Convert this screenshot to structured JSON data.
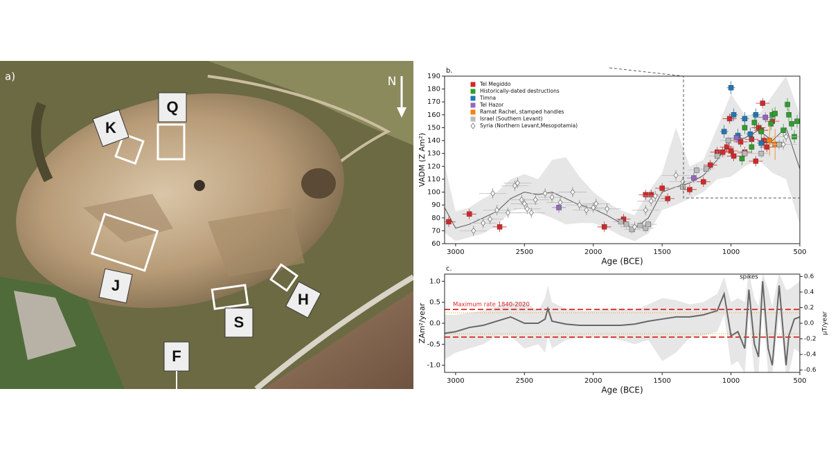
{
  "photo": {
    "panel_label": "a)",
    "north": "N",
    "areas": [
      "K",
      "Q",
      "J",
      "S",
      "H",
      "F"
    ]
  },
  "chart_data": [
    {
      "type": "scatter",
      "panel_label": "b.",
      "x_label": "Age (BCE)",
      "y_label": "VADM (Z Am²)",
      "xlim": [
        3080,
        500
      ],
      "ylim": [
        60,
        190
      ],
      "xticks": [
        3000,
        2500,
        2000,
        1500,
        1000,
        500
      ],
      "yticks": [
        60,
        70,
        80,
        90,
        100,
        110,
        120,
        130,
        140,
        150,
        160,
        170,
        180,
        190
      ],
      "legend": "upper left",
      "model": {
        "color": "#555555",
        "band_color": "#e6e6e6",
        "x": [
          3100,
          3000,
          2900,
          2800,
          2700,
          2600,
          2500,
          2400,
          2300,
          2200,
          2100,
          2000,
          1900,
          1800,
          1700,
          1600,
          1500,
          1400,
          1300,
          1200,
          1100,
          1000,
          900,
          800,
          700,
          600,
          500
        ],
        "values": [
          92,
          72,
          75,
          80,
          85,
          95,
          100,
          98,
          100,
          95,
          90,
          87,
          82,
          76,
          72,
          80,
          100,
          104,
          107,
          113,
          125,
          140,
          142,
          148,
          140,
          150,
          118
        ],
        "lower": [
          70,
          62,
          65,
          68,
          74,
          85,
          88,
          84,
          80,
          75,
          76,
          76,
          72,
          66,
          62,
          68,
          86,
          90,
          95,
          100,
          110,
          112,
          120,
          125,
          115,
          110,
          75
        ],
        "upper": [
          130,
          85,
          88,
          95,
          100,
          110,
          114,
          110,
          125,
          127,
          112,
          100,
          92,
          86,
          82,
          100,
          115,
          150,
          120,
          125,
          150,
          176,
          160,
          160,
          175,
          190,
          160
        ]
      },
      "series": [
        {
          "name": "Tel Megiddo",
          "color": "#d62728",
          "marker": "square",
          "xerr": 50,
          "yerr": 4,
          "x": [
            3050,
            2900,
            2680,
            1920,
            1780,
            1620,
            1580,
            1500,
            1460,
            1300,
            1200,
            1150,
            1100,
            1060,
            1030,
            1010,
            1000,
            980,
            930,
            900,
            850,
            820,
            800,
            780,
            770,
            760,
            740,
            700,
            650
          ],
          "values": [
            77,
            83,
            73,
            73,
            79,
            98,
            98,
            103,
            95,
            102,
            108,
            121,
            131,
            131,
            135,
            157,
            132,
            128,
            139,
            131,
            141,
            124,
            150,
            148,
            169,
            140,
            135,
            155,
            137
          ]
        },
        {
          "name": "Historically-dated destructions",
          "color": "#2ca02c",
          "marker": "square",
          "xerr": 20,
          "yerr": 5,
          "x": [
            920,
            900,
            850,
            830,
            780,
            710,
            700,
            680,
            620,
            590,
            580,
            560,
            540,
            520
          ],
          "values": [
            126,
            150,
            135,
            154,
            147,
            153,
            160,
            161,
            148,
            168,
            160,
            153,
            143,
            155
          ]
        },
        {
          "name": "Timna",
          "color": "#1f77b4",
          "marker": "square",
          "xerr": 30,
          "yerr": 5,
          "x": [
            1050,
            1000,
            980,
            950,
            900,
            860,
            820,
            780
          ],
          "values": [
            147,
            181,
            160,
            144,
            157,
            145,
            160,
            138
          ]
        },
        {
          "name": "Tel Hazor",
          "color": "#9467bd",
          "marker": "square",
          "xerr": 50,
          "yerr": 4,
          "x": [
            2250,
            1270,
            960,
            750
          ],
          "values": [
            88,
            111,
            142,
            158
          ]
        },
        {
          "name": "Ramat Rachel, stamped handles",
          "color": "#ff7f0e",
          "marker": "square",
          "xerr": 40,
          "yerr": 12,
          "x": [
            720,
            680
          ],
          "values": [
            140,
            137
          ]
        },
        {
          "name": "Israel (Southern Levant)",
          "color": "#bbbbbb",
          "marker": "square",
          "xerr": 60,
          "yerr": 4,
          "x": [
            1800,
            1760,
            1720,
            1660,
            1620,
            1600,
            1350,
            1250,
            1180,
            1100,
            1020,
            900,
            780,
            650
          ],
          "values": [
            77,
            75,
            71,
            74,
            72,
            75,
            104,
            117,
            118,
            128,
            140,
            130,
            130,
            137
          ]
        },
        {
          "name": "Syria (Northern Levant,Mesopotamia)",
          "color": "#888888",
          "marker": "diamond",
          "xerr": 100,
          "yerr": 4,
          "x": [
            2870,
            2800,
            2750,
            2730,
            2700,
            2620,
            2570,
            2550,
            2520,
            2500,
            2480,
            2450,
            2420,
            2350,
            2300,
            2240,
            2150,
            2100,
            2050,
            2000,
            1980,
            1900,
            1700,
            1620,
            1580,
            1550,
            1400,
            1350,
            620,
            600
          ],
          "values": [
            70,
            76,
            79,
            99,
            86,
            84,
            105,
            107,
            94,
            91,
            87,
            84,
            94,
            99,
            96,
            92,
            100,
            90,
            86,
            88,
            91,
            87,
            73,
            86,
            93,
            97,
            113,
            108,
            137,
            143
          ]
        }
      ]
    },
    {
      "type": "line",
      "panel_label": "c.",
      "x_label": "Age (BCE)",
      "y_label": "ZAm²/year",
      "y2_label": "μT/year",
      "xlim": [
        3080,
        500
      ],
      "ylim": [
        -1.17,
        1.17
      ],
      "y2lim": [
        -0.63,
        0.63
      ],
      "xticks": [
        3000,
        2500,
        2000,
        1500,
        1000,
        500
      ],
      "yticks": [
        {
          "value": -1,
          "label": "-1.0"
        },
        {
          "value": -0.5,
          "label": "-0.5"
        },
        {
          "value": 0,
          "label": "0.0"
        },
        {
          "value": 0.5,
          "label": "0.5"
        },
        {
          "value": 1,
          "label": "1.0"
        }
      ],
      "y2ticks": [
        -0.6,
        -0.4,
        -0.2,
        {
          "value": 0,
          "label": "0.0"
        },
        0.2,
        0.4,
        0.6
      ],
      "max_rate_label": "Maximum rate 1840-2020",
      "max_rate": [
        0.33,
        -0.33
      ],
      "max_rate_color": "#d62728",
      "secondary_rate": [
        0.25,
        -0.25
      ],
      "secondary_rate_color": "#ff9900",
      "annotation": "spikes",
      "annotation_x": 870,
      "annotation_y": 1.1,
      "band_color": "#e6e6e6",
      "x": [
        3100,
        3000,
        2900,
        2800,
        2700,
        2600,
        2500,
        2400,
        2350,
        2330,
        2300,
        2200,
        2100,
        2000,
        1900,
        1800,
        1700,
        1600,
        1500,
        1400,
        1300,
        1200,
        1100,
        1050,
        1000,
        950,
        900,
        870,
        830,
        800,
        770,
        730,
        700,
        650,
        600,
        580,
        540,
        500
      ],
      "series": [
        {
          "color": "#666666",
          "values": [
            -0.25,
            -0.2,
            -0.1,
            -0.05,
            0.05,
            0.15,
            0.0,
            0.0,
            0.1,
            0.35,
            0.05,
            -0.02,
            -0.05,
            -0.05,
            -0.05,
            -0.05,
            -0.02,
            0.05,
            0.1,
            0.15,
            0.15,
            0.2,
            0.3,
            0.7,
            -0.3,
            -0.2,
            -0.6,
            0.8,
            -0.5,
            -0.8,
            1.0,
            -0.6,
            -1.0,
            0.9,
            -1.0,
            -0.3,
            0.1,
            0.15
          ],
          "upper": [
            0.2,
            0.2,
            0.25,
            0.3,
            0.4,
            0.5,
            0.5,
            0.3,
            0.6,
            0.9,
            0.5,
            0.35,
            0.3,
            0.3,
            0.35,
            0.35,
            0.3,
            0.45,
            0.6,
            0.55,
            0.45,
            0.5,
            0.7,
            1.1,
            0.5,
            0.6,
            0.5,
            1.2,
            0.6,
            0.4,
            1.2,
            0.8,
            0.4,
            1.2,
            0.8,
            0.8,
            0.9,
            1.0
          ],
          "lower": [
            -0.9,
            -0.7,
            -0.6,
            -0.5,
            -0.3,
            -0.3,
            -0.6,
            -0.5,
            -0.7,
            -0.3,
            -0.6,
            -0.4,
            -0.35,
            -0.35,
            -0.35,
            -0.4,
            -0.5,
            -0.4,
            -0.9,
            -0.7,
            -0.35,
            -0.3,
            -0.2,
            0.2,
            -1.0,
            -0.9,
            -1.2,
            0.2,
            -1.2,
            -1.2,
            0.4,
            -1.2,
            -1.2,
            0.2,
            -1.2,
            -1.2,
            -0.6,
            -0.7
          ]
        }
      ]
    }
  ]
}
